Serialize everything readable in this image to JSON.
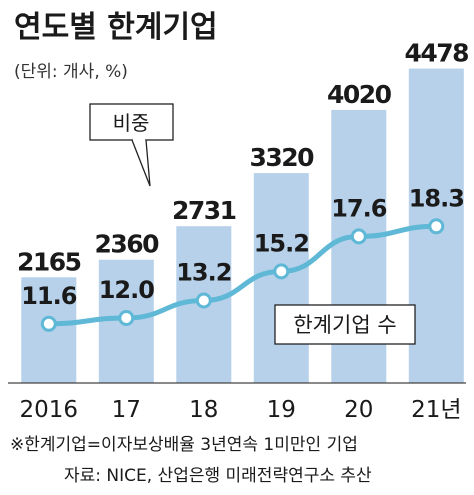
{
  "chart_data": {
    "title": "연도별 한계기업",
    "unit_note": "(단위: 개사, %)",
    "categories": [
      "2016",
      "17",
      "18",
      "19",
      "20",
      "21년"
    ],
    "series": [
      {
        "name": "한계기업 수",
        "type": "bar",
        "values": [
          2165,
          2360,
          2731,
          3320,
          4020,
          4478
        ]
      },
      {
        "name": "비중",
        "type": "line",
        "values": [
          11.6,
          12.0,
          13.2,
          15.2,
          17.6,
          18.3
        ]
      }
    ],
    "value_labels": {
      "bar": [
        "2165",
        "2360",
        "2731",
        "3320",
        "4020",
        "4478"
      ],
      "line": [
        "11.6",
        "12.0",
        "13.2",
        "15.2",
        "17.6",
        "18.3"
      ]
    },
    "footnote": "※한계기업=이자보상배율 3년연속 1미만인 기업",
    "source": "자료: NICE, 산업은행 미래전략연구소 추산",
    "colors": {
      "bar": "#b7d1ea",
      "line": "#5fb8d6",
      "marker_fill": "#ffffff",
      "text": "#1a1a1a"
    }
  }
}
